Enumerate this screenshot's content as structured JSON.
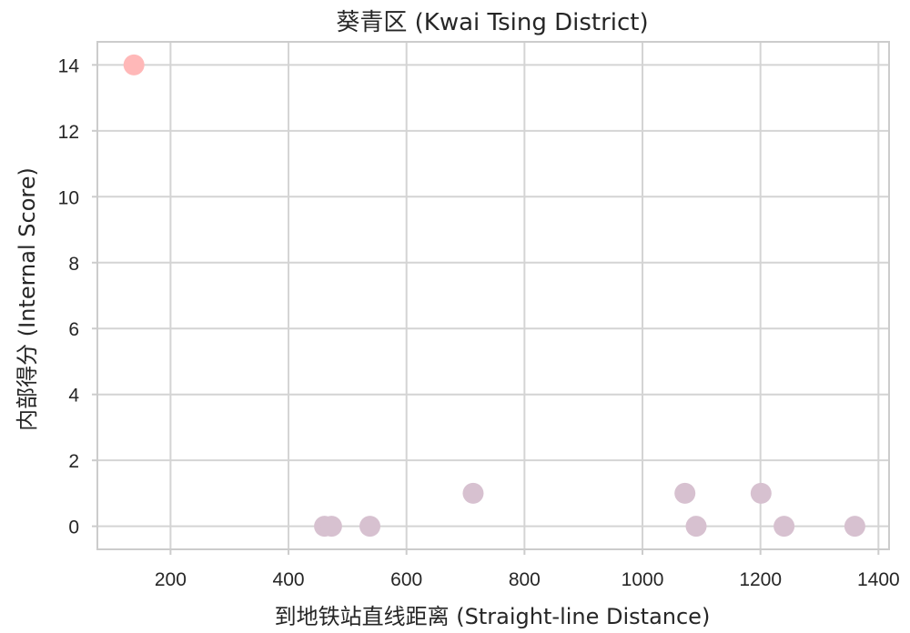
{
  "chart_data": {
    "type": "scatter",
    "title": "葵青区 (Kwai Tsing District)",
    "xlabel": "到地铁站直线距离 (Straight-line Distance)",
    "ylabel": "内部得分 (Internal Score)",
    "xlim": [
      76,
      1418
    ],
    "ylim": [
      -0.7,
      14.7
    ],
    "xticks": [
      200,
      400,
      600,
      800,
      1000,
      1200,
      1400
    ],
    "yticks": [
      0,
      2,
      4,
      6,
      8,
      10,
      12,
      14
    ],
    "grid": true,
    "legend": "none",
    "points": [
      {
        "x": 138,
        "y": 14,
        "color": "#ffb8b8"
      },
      {
        "x": 461,
        "y": 0,
        "color": "#d7c1d0"
      },
      {
        "x": 473,
        "y": 0,
        "color": "#d7c1d0"
      },
      {
        "x": 538,
        "y": 0,
        "color": "#d7c1d0"
      },
      {
        "x": 713,
        "y": 1,
        "color": "#d7c1d0"
      },
      {
        "x": 1072,
        "y": 1,
        "color": "#d7c1d0"
      },
      {
        "x": 1091,
        "y": 0,
        "color": "#d7c1d0"
      },
      {
        "x": 1201,
        "y": 1,
        "color": "#d7c1d0"
      },
      {
        "x": 1240,
        "y": 0,
        "color": "#d7c1d0"
      },
      {
        "x": 1360,
        "y": 0,
        "color": "#d7c1d0"
      }
    ]
  }
}
